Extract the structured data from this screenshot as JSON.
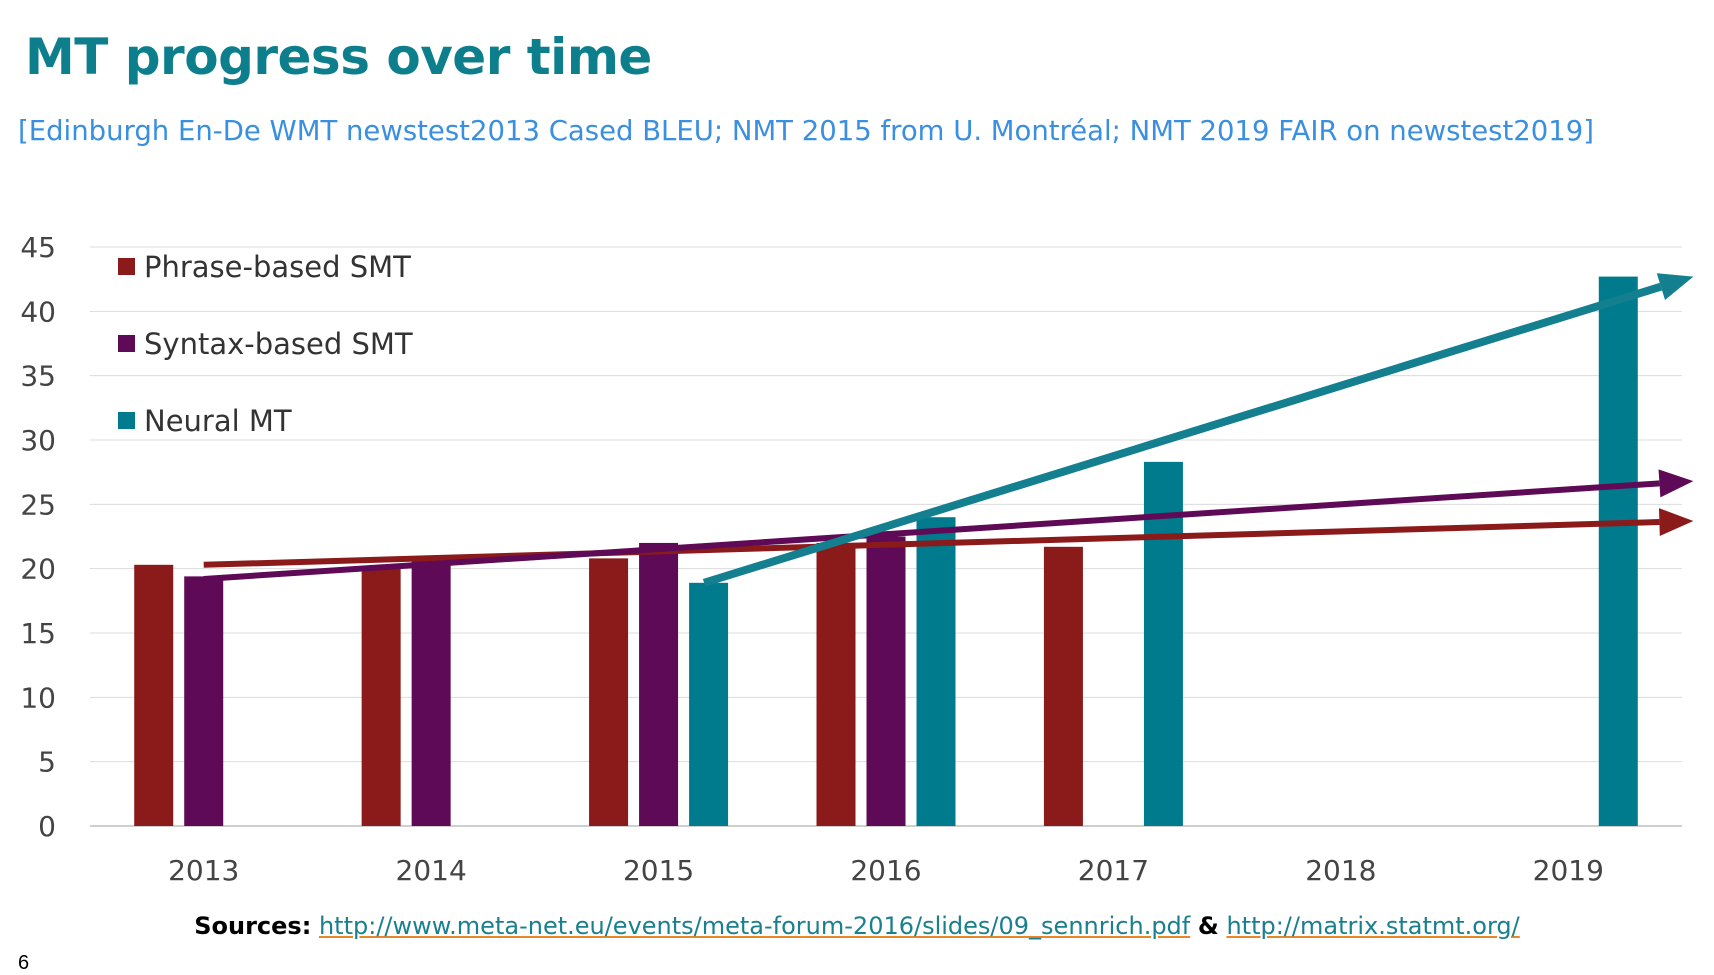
{
  "title": "MT progress over time",
  "subtitle": "[Edinburgh En-De WMT newstest2013 Cased BLEU; NMT 2015 from U. Montréal; NMT 2019 FAIR on newstest2019]",
  "sources": {
    "label": "Sources:",
    "link1": "http://www.meta-net.eu/events/meta-forum-2016/slides/09_sennrich.pdf",
    "amp": "&",
    "link2": "http://matrix.statmt.org/"
  },
  "page_number": "6",
  "chart_data": {
    "type": "bar",
    "categories": [
      "2013",
      "2014",
      "2015",
      "2016",
      "2017",
      "2018",
      "2019"
    ],
    "ylim": [
      0,
      45
    ],
    "yticks": [
      0,
      5,
      10,
      15,
      20,
      25,
      30,
      35,
      40,
      45
    ],
    "grid": true,
    "legend_position": "top-left",
    "series": [
      {
        "name": "Phrase-based SMT",
        "color": "#8b1a1a",
        "values": [
          20.3,
          20.0,
          20.8,
          22.0,
          21.7,
          null,
          null
        ]
      },
      {
        "name": "Syntax-based SMT",
        "color": "#5e0a56",
        "values": [
          19.4,
          20.7,
          22.0,
          22.5,
          null,
          null,
          null
        ]
      },
      {
        "name": "Neural MT",
        "color": "#007b8e",
        "values": [
          null,
          null,
          18.9,
          24.0,
          28.3,
          null,
          42.7
        ]
      }
    ],
    "trend_arrows": [
      {
        "series": "Phrase-based SMT",
        "color": "#8b1a1a",
        "from": [
          2013,
          20.3
        ],
        "to": [
          2019.55,
          23.7
        ]
      },
      {
        "series": "Syntax-based SMT",
        "color": "#5e0a56",
        "from": [
          2013,
          19.2
        ],
        "to": [
          2019.55,
          26.8
        ]
      },
      {
        "series": "Neural MT",
        "color": "#137f8f",
        "from": [
          2015.2,
          18.9
        ],
        "to": [
          2019.55,
          42.7
        ]
      }
    ]
  }
}
